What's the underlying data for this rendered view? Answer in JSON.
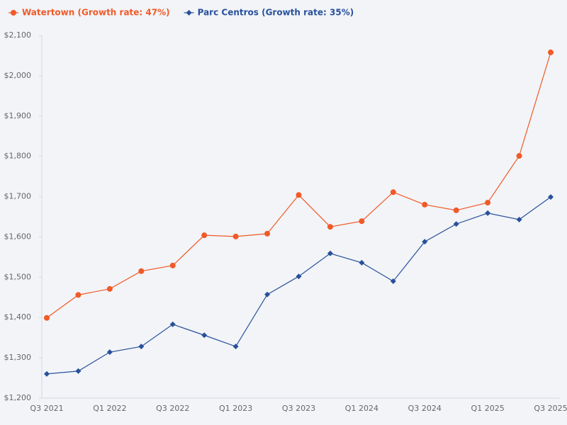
{
  "chart_data": {
    "type": "line",
    "categories": [
      "Q3 2021",
      null,
      "Q1 2022",
      null,
      "Q3 2022",
      null,
      "Q1 2023",
      null,
      "Q3 2023",
      null,
      "Q1 2024",
      null,
      "Q3 2024",
      null,
      "Q1 2025",
      null,
      "Q3 2025"
    ],
    "series": [
      {
        "name": "Watertown (Growth rate: 47%)",
        "color": "#f05a28",
        "marker": "circle",
        "values": [
          1399,
          1456,
          1471,
          1515,
          1529,
          1604,
          1601,
          1608,
          1704,
          1625,
          1639,
          1711,
          1680,
          1666,
          1685,
          1801,
          2058
        ]
      },
      {
        "name": "Parc Centros (Growth rate: 35%)",
        "color": "#28509b",
        "marker": "diamond",
        "values": [
          1260,
          1267,
          1314,
          1328,
          1383,
          1356,
          1328,
          1457,
          1502,
          1559,
          1536,
          1490,
          1588,
          1632,
          1659,
          1643,
          1699
        ]
      }
    ],
    "ylim": [
      1200,
      2100
    ],
    "yticks": [
      {
        "value": 1200,
        "label": "$1,200"
      },
      {
        "value": 1300,
        "label": "$1,300"
      },
      {
        "value": 1400,
        "label": "$1,400"
      },
      {
        "value": 1500,
        "label": "$1,500"
      },
      {
        "value": 1600,
        "label": "$1,600"
      },
      {
        "value": 1700,
        "label": "$1,700"
      },
      {
        "value": 1800,
        "label": "$1,800"
      },
      {
        "value": 1900,
        "label": "$1,900"
      },
      {
        "value": 2000,
        "label": "$2,000"
      },
      {
        "value": 2100,
        "label": "$2,100"
      }
    ],
    "grid": false
  }
}
